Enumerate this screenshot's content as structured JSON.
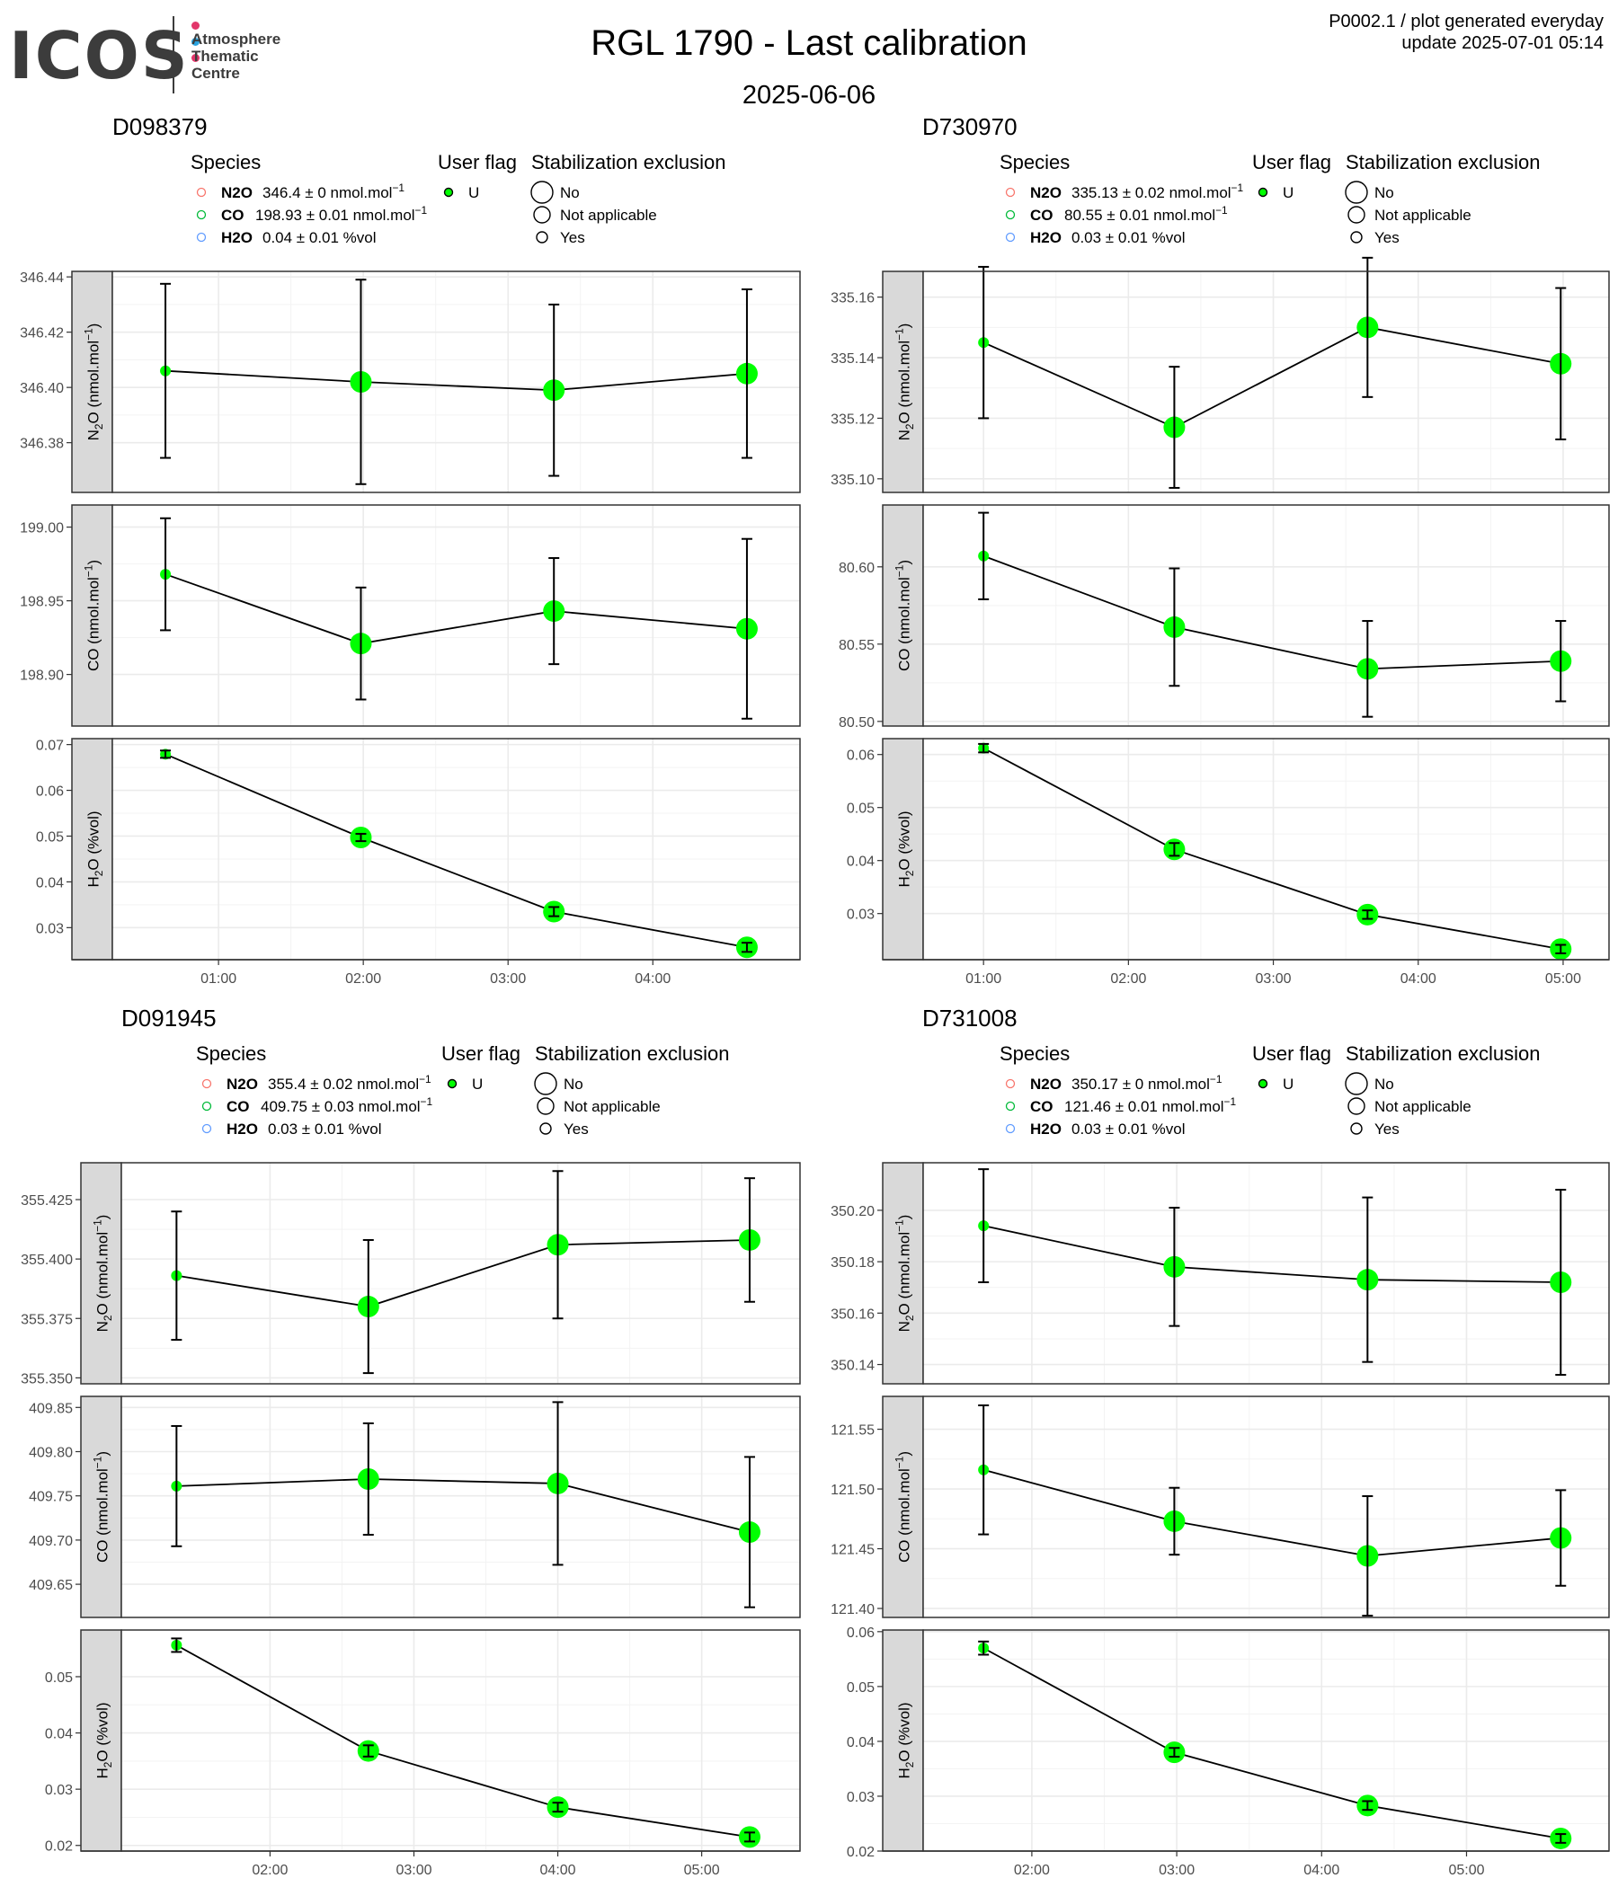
{
  "header": {
    "logo": {
      "wordmark": "ICOS",
      "lines": [
        "Atmosphere",
        "Thematic",
        "Centre"
      ],
      "dot_colors": [
        "#e2366a",
        "#2aa4e0",
        "#e2366a"
      ],
      "ink_color": "#3c3c3c"
    },
    "title": "RGL 1790 - Last calibration",
    "date": "2025-06-06",
    "meta_line1": "P0002.1 / plot generated everyday",
    "meta_line2": "update  2025-07-01 05:14"
  },
  "legend": {
    "species_title": "Species",
    "flag_title": "User flag",
    "stab_title": "Stabilization exclusion",
    "flag_items": [
      "U"
    ],
    "stab_items": [
      "No",
      "Not applicable",
      "Yes"
    ],
    "species_colors": [
      "#f8766d",
      "#00ba38",
      "#619cff"
    ]
  },
  "colors": {
    "point_fill": "#00ff00",
    "line": "#000000",
    "strip_fill": "#d9d9d9",
    "grid": "#ebebeb",
    "panel_border": "#333333"
  },
  "chart_data": [
    {
      "type": "scatter",
      "cylinder": "D098379",
      "legend_entries": [
        {
          "species": "N2O",
          "label": "346.4 ± 0 nmol.mol-1"
        },
        {
          "species": "CO",
          "label": "198.93 ± 0.01 nmol.mol-1"
        },
        {
          "species": "H2O",
          "label": "0.04 ± 0.01 %vol"
        }
      ],
      "x": [
        "00:38",
        "01:59",
        "03:19",
        "04:39"
      ],
      "x_ticks": [
        "01:00",
        "02:00",
        "03:00",
        "04:00"
      ],
      "xlim": [
        "00:16",
        "05:01"
      ],
      "stabilization": [
        "Yes",
        "No",
        "No",
        "No"
      ],
      "panels": [
        {
          "ylabel": "N2O (nmol.mol-1)",
          "ylim": [
            346.362,
            346.442
          ],
          "ticks": [
            346.38,
            346.4,
            346.42,
            346.44
          ],
          "tick_labels": [
            "346.38",
            "346.40",
            "346.42",
            "346.44"
          ],
          "values": [
            346.406,
            346.402,
            346.399,
            346.405
          ],
          "err": [
            0.0315,
            0.037,
            0.031,
            0.0305
          ]
        },
        {
          "ylabel": "CO (nmol.mol-1)",
          "ylim": [
            198.865,
            199.015
          ],
          "ticks": [
            198.9,
            198.95,
            199.0
          ],
          "tick_labels": [
            "198.90",
            "198.95",
            "199.00"
          ],
          "values": [
            198.968,
            198.921,
            198.943,
            198.931
          ],
          "err": [
            0.038,
            0.038,
            0.036,
            0.061
          ]
        },
        {
          "ylabel": "H2O (%vol)",
          "ylim": [
            0.023,
            0.0713
          ],
          "ticks": [
            0.03,
            0.04,
            0.05,
            0.06,
            0.07
          ],
          "tick_labels": [
            "0.03",
            "0.04",
            "0.05",
            "0.06",
            "0.07"
          ],
          "values": [
            0.0679,
            0.0497,
            0.0335,
            0.0257
          ],
          "err": [
            0.0008,
            0.0008,
            0.001,
            0.001
          ]
        }
      ]
    },
    {
      "type": "scatter",
      "cylinder": "D730970",
      "legend_entries": [
        {
          "species": "N2O",
          "label": "335.13 ± 0.02 nmol.mol-1"
        },
        {
          "species": "CO",
          "label": "80.55 ± 0.01 nmol.mol-1"
        },
        {
          "species": "H2O",
          "label": "0.03 ± 0.01 %vol"
        }
      ],
      "x": [
        "01:00",
        "02:19",
        "03:39",
        "04:59"
      ],
      "x_ticks": [
        "01:00",
        "02:00",
        "03:00",
        "04:00",
        "05:00"
      ],
      "xlim": [
        "00:35",
        "05:19"
      ],
      "stabilization": [
        "Yes",
        "No",
        "No",
        "No"
      ],
      "panels": [
        {
          "ylabel": "N2O (nmol.mol-1)",
          "ylim": [
            335.0955,
            335.1685
          ],
          "ticks": [
            335.1,
            335.12,
            335.14,
            335.16
          ],
          "tick_labels": [
            "335.10",
            "335.12",
            "335.14",
            "335.16"
          ],
          "values": [
            335.145,
            335.117,
            335.15,
            335.138
          ],
          "err": [
            0.025,
            0.02,
            0.023,
            0.025
          ]
        },
        {
          "ylabel": "CO (nmol.mol-1)",
          "ylim": [
            80.497,
            80.64
          ],
          "ticks": [
            80.5,
            80.55,
            80.6
          ],
          "tick_labels": [
            "80.50",
            "80.55",
            "80.60"
          ],
          "values": [
            80.607,
            80.561,
            80.534,
            80.539
          ],
          "err": [
            0.028,
            0.038,
            0.031,
            0.026
          ]
        },
        {
          "ylabel": "H2O (%vol)",
          "ylim": [
            0.0213,
            0.063
          ],
          "ticks": [
            0.03,
            0.04,
            0.05,
            0.06
          ],
          "tick_labels": [
            "0.03",
            "0.04",
            "0.05",
            "0.06"
          ],
          "values": [
            0.0612,
            0.0421,
            0.0298,
            0.0233
          ],
          "err": [
            0.0008,
            0.0012,
            0.0008,
            0.0008
          ]
        }
      ]
    },
    {
      "type": "scatter",
      "cylinder": "D091945",
      "legend_entries": [
        {
          "species": "N2O",
          "label": "355.4 ± 0.02 nmol.mol-1"
        },
        {
          "species": "CO",
          "label": "409.75 ± 0.03 nmol.mol-1"
        },
        {
          "species": "H2O",
          "label": "0.03 ± 0.01 %vol"
        }
      ],
      "x": [
        "01:21",
        "02:41",
        "04:00",
        "05:20"
      ],
      "x_ticks": [
        "02:00",
        "03:00",
        "04:00",
        "05:00"
      ],
      "xlim": [
        "00:58",
        "05:41"
      ],
      "stabilization": [
        "Yes",
        "No",
        "No",
        "No"
      ],
      "panels": [
        {
          "ylabel": "N2O (nmol.mol-1)",
          "ylim": [
            355.3475,
            355.4405
          ],
          "ticks": [
            355.35,
            355.375,
            355.4,
            355.425
          ],
          "tick_labels": [
            "355.350",
            "355.375",
            "355.400",
            "355.425"
          ],
          "values": [
            355.393,
            355.38,
            355.406,
            355.408
          ],
          "err": [
            0.027,
            0.028,
            0.031,
            0.026
          ]
        },
        {
          "ylabel": "CO (nmol.mol-1)",
          "ylim": [
            409.6125,
            409.8625
          ],
          "ticks": [
            409.65,
            409.7,
            409.75,
            409.8,
            409.85
          ],
          "tick_labels": [
            "409.65",
            "409.70",
            "409.75",
            "409.80",
            "409.85"
          ],
          "values": [
            409.761,
            409.769,
            409.764,
            409.709
          ],
          "err": [
            0.068,
            0.063,
            0.092,
            0.085
          ]
        },
        {
          "ylabel": "H2O (%vol)",
          "ylim": [
            0.019,
            0.0583
          ],
          "ticks": [
            0.02,
            0.03,
            0.04,
            0.05
          ],
          "tick_labels": [
            "0.02",
            "0.03",
            "0.04",
            "0.05"
          ],
          "values": [
            0.0556,
            0.0368,
            0.0268,
            0.0215
          ],
          "err": [
            0.0012,
            0.001,
            0.0008,
            0.0008
          ]
        }
      ]
    },
    {
      "type": "scatter",
      "cylinder": "D731008",
      "legend_entries": [
        {
          "species": "N2O",
          "label": "350.17 ± 0 nmol.mol-1"
        },
        {
          "species": "CO",
          "label": "121.46 ± 0.01 nmol.mol-1"
        },
        {
          "species": "H2O",
          "label": "0.03 ± 0.01 %vol"
        }
      ],
      "x": [
        "01:40",
        "02:59",
        "04:19",
        "05:39"
      ],
      "x_ticks": [
        "02:00",
        "03:00",
        "04:00",
        "05:00"
      ],
      "xlim": [
        "01:15",
        "05:59"
      ],
      "stabilization": [
        "Yes",
        "No",
        "No",
        "No"
      ],
      "panels": [
        {
          "ylabel": "N2O (nmol.mol-1)",
          "ylim": [
            350.1325,
            350.2185
          ],
          "ticks": [
            350.14,
            350.16,
            350.18,
            350.2
          ],
          "tick_labels": [
            "350.14",
            "350.16",
            "350.18",
            "350.20"
          ],
          "values": [
            350.194,
            350.178,
            350.173,
            350.172
          ],
          "err": [
            0.022,
            0.023,
            0.032,
            0.036
          ]
        },
        {
          "ylabel": "CO (nmol.mol-1)",
          "ylim": [
            121.3925,
            121.5775
          ],
          "ticks": [
            121.4,
            121.45,
            121.5,
            121.55
          ],
          "tick_labels": [
            "121.40",
            "121.45",
            "121.50",
            "121.55"
          ],
          "values": [
            121.516,
            121.473,
            121.444,
            121.459
          ],
          "err": [
            0.054,
            0.028,
            0.05,
            0.04
          ]
        },
        {
          "ylabel": "H2O (%vol)",
          "ylim": [
            0.02,
            0.0603
          ],
          "ticks": [
            0.02,
            0.03,
            0.04,
            0.05,
            0.06
          ],
          "tick_labels": [
            "0.02",
            "0.03",
            "0.04",
            "0.05",
            "0.06"
          ],
          "values": [
            0.057,
            0.038,
            0.0283,
            0.0223
          ],
          "err": [
            0.0012,
            0.0008,
            0.0008,
            0.0008
          ]
        }
      ]
    }
  ]
}
